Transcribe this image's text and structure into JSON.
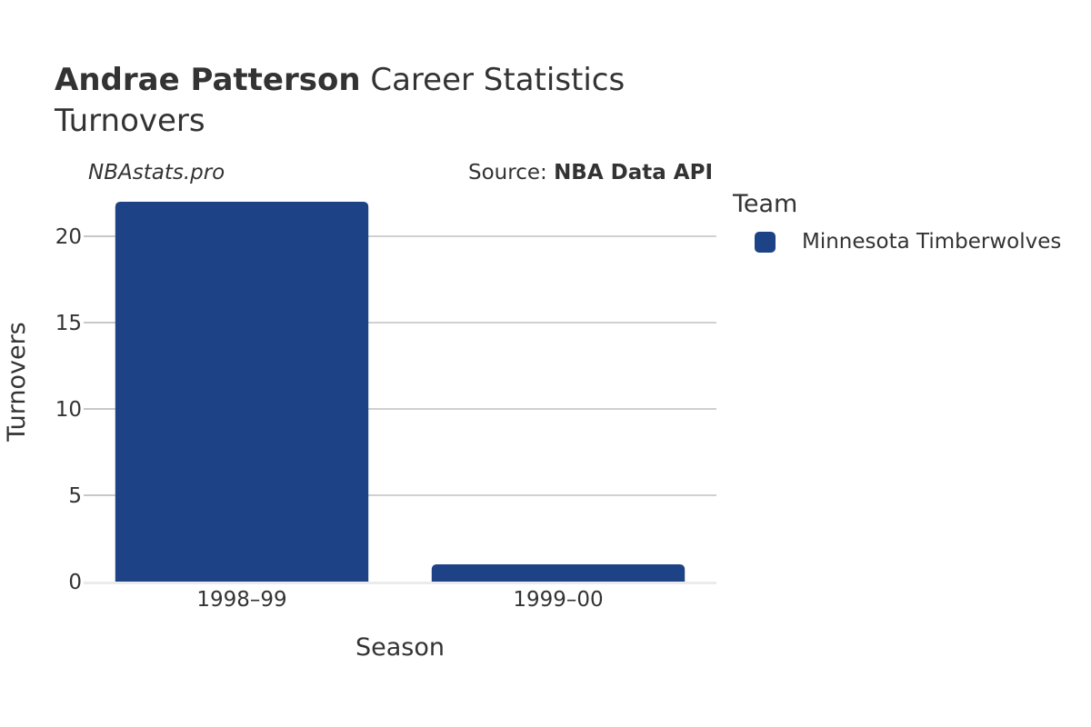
{
  "header": {
    "player_name": "Andrae Patterson",
    "title_rest": "Career Statistics",
    "subtitle": "Turnovers"
  },
  "credits": {
    "watermark": "NBAstats.pro",
    "source_prefix": "Source:",
    "source_name": "NBA Data API"
  },
  "legend": {
    "title": "Team",
    "items": [
      {
        "label": "Minnesota Timberwolves",
        "color": "#1d4286"
      }
    ]
  },
  "chart_data": {
    "type": "bar",
    "categories": [
      "1998–99",
      "1999–00"
    ],
    "series": [
      {
        "name": "Minnesota Timberwolves",
        "values": [
          22,
          1
        ],
        "color": "#1d4286"
      }
    ],
    "xlabel": "Season",
    "ylabel": "Turnovers",
    "ylim": [
      0,
      22
    ],
    "yticks": [
      0,
      5,
      10,
      15,
      20
    ],
    "grid": true,
    "legend_position": "right"
  }
}
